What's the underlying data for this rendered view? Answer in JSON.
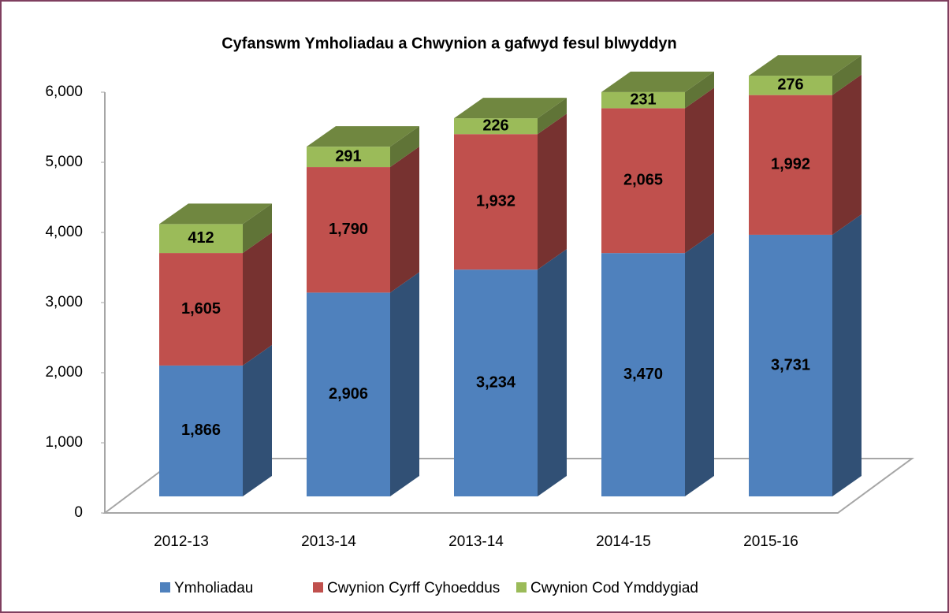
{
  "chart_data": {
    "type": "bar3d_stacked",
    "title": "Cyfanswm Ymholiadau a Chwynion a gafwyd  fesul blwyddyn",
    "categories": [
      "2012-13",
      "2013-14",
      "2013-14",
      "2014-15",
      "2015-16"
    ],
    "series": [
      {
        "name": "Ymholiadau",
        "color": "#4f81bd",
        "values": [
          1866,
          2906,
          3234,
          3470,
          3731
        ],
        "value_labels": [
          "1,866",
          "2,906",
          "3,234",
          "3,470",
          "3,731"
        ]
      },
      {
        "name": "Cwynion Cyrff Cyhoeddus",
        "color": "#c0504d",
        "values": [
          1605,
          1790,
          1932,
          2065,
          1992
        ],
        "value_labels": [
          "1,605",
          "1,790",
          "1,932",
          "2,065",
          "1,992"
        ]
      },
      {
        "name": "Cwynion Cod Ymddygiad",
        "color": "#9bbb59",
        "values": [
          412,
          291,
          226,
          231,
          276
        ],
        "value_labels": [
          "412",
          "291",
          "226",
          "231",
          "276"
        ]
      }
    ],
    "ylim": [
      0,
      6000
    ],
    "yticks": [
      0,
      {
        "value": 1000,
        "label": "1,000"
      },
      {
        "value": 2000,
        "label": "2,000"
      },
      {
        "value": 3000,
        "label": "3,000"
      },
      {
        "value": 4000,
        "label": "4,000"
      },
      {
        "value": 5000,
        "label": "5,000"
      },
      {
        "value": 6000,
        "label": "6,000"
      }
    ],
    "legend": "bottom"
  }
}
